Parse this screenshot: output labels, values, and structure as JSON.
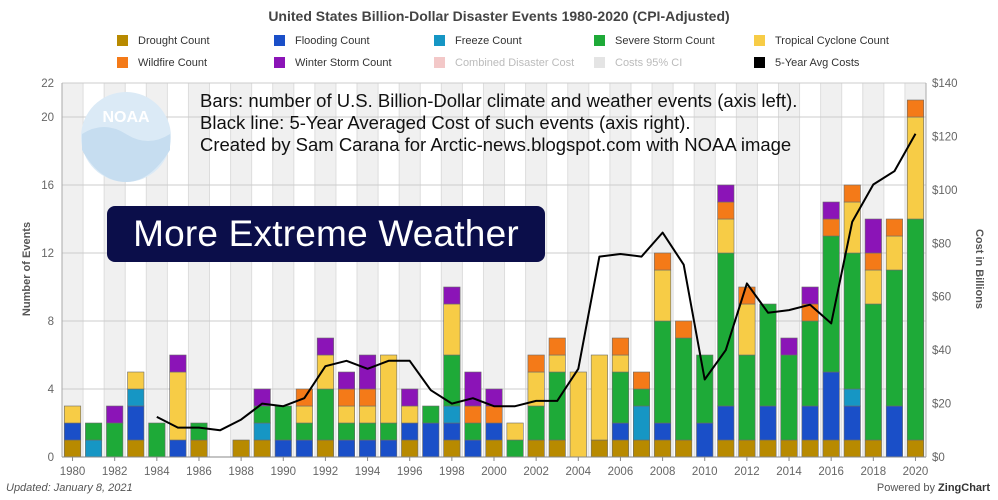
{
  "header": {
    "title": "United States Billion-Dollar Disaster Events 1980-2020 (CPI-Adjusted)"
  },
  "legend": [
    {
      "label": "Drought Count",
      "color": "#b88a00",
      "faded": false
    },
    {
      "label": "Flooding Count",
      "color": "#1a4fc8",
      "faded": false
    },
    {
      "label": "Freeze Count",
      "color": "#1696c4",
      "faded": false
    },
    {
      "label": "Severe Storm Count",
      "color": "#1eaa38",
      "faded": false
    },
    {
      "label": "Tropical Cyclone Count",
      "color": "#f7cc46",
      "faded": false
    },
    {
      "label": "Wildfire Count",
      "color": "#f47a18",
      "faded": false
    },
    {
      "label": "Winter Storm Count",
      "color": "#8b14b7",
      "faded": false
    },
    {
      "label": "Combined Disaster Cost",
      "color": "#f3c8c8",
      "faded": true
    },
    {
      "label": "Costs 95% CI",
      "color": "#e4e4e4",
      "faded": true
    },
    {
      "label": "5-Year Avg Costs",
      "color": "#000000",
      "faded": false
    }
  ],
  "overlay": {
    "line1": "Bars: number of U.S. Billion-Dollar climate and weather events (axis left).",
    "line2": "Black line: 5-Year Averaged Cost of such events (axis right).",
    "line3": "Created by Sam Carana for Arctic-news.blogspot.com with NOAA image",
    "headline": "More Extreme Weather"
  },
  "logo": {
    "text": "NOAA"
  },
  "footer": {
    "updated": "Updated: January 8, 2021",
    "powered_prefix": "Powered by ",
    "powered_brand": "ZingChart"
  },
  "chart_data": {
    "type": "bar",
    "stacked": true,
    "xlabel": "",
    "ylabel": "Number of Events",
    "y2label": "Cost in Billions",
    "ylim": [
      0,
      22
    ],
    "y2lim": [
      0,
      140
    ],
    "yticks": [
      "0",
      "4",
      "8",
      "12",
      "16",
      "20",
      "22"
    ],
    "y2ticks": [
      "$0",
      "$20",
      "$40",
      "$60",
      "$80",
      "$100",
      "$120",
      "$140"
    ],
    "xticks": [
      "1980",
      "1982",
      "1984",
      "1986",
      "1988",
      "1990",
      "1992",
      "1994",
      "1996",
      "1998",
      "2000",
      "2002",
      "2004",
      "2006",
      "2008",
      "2010",
      "2012",
      "2014",
      "2016",
      "2018",
      "2020"
    ],
    "grid": true,
    "years": [
      1980,
      1981,
      1982,
      1983,
      1984,
      1985,
      1986,
      1987,
      1988,
      1989,
      1990,
      1991,
      1992,
      1993,
      1994,
      1995,
      1996,
      1997,
      1998,
      1999,
      2000,
      2001,
      2002,
      2003,
      2004,
      2005,
      2006,
      2007,
      2008,
      2009,
      2010,
      2011,
      2012,
      2013,
      2014,
      2015,
      2016,
      2017,
      2018,
      2019,
      2020
    ],
    "series": [
      {
        "name": "Drought Count",
        "color": "#b88a00",
        "values": [
          1,
          0,
          0,
          1,
          0,
          0,
          1,
          0,
          1,
          1,
          0,
          0,
          1,
          0,
          0,
          0,
          1,
          0,
          1,
          0,
          1,
          0,
          1,
          1,
          0,
          1,
          1,
          1,
          1,
          1,
          0,
          1,
          1,
          1,
          1,
          1,
          1,
          1,
          1,
          0,
          1
        ]
      },
      {
        "name": "Flooding Count",
        "color": "#1a4fc8",
        "values": [
          1,
          0,
          0,
          2,
          0,
          1,
          0,
          0,
          0,
          0,
          1,
          1,
          0,
          1,
          1,
          1,
          1,
          2,
          1,
          1,
          1,
          0,
          0,
          0,
          0,
          0,
          1,
          0,
          1,
          0,
          2,
          2,
          0,
          2,
          0,
          2,
          4,
          2,
          0,
          3,
          0
        ]
      },
      {
        "name": "Freeze Count",
        "color": "#1696c4",
        "values": [
          0,
          1,
          0,
          1,
          0,
          0,
          0,
          0,
          0,
          1,
          0,
          0,
          0,
          0,
          0,
          0,
          0,
          0,
          1,
          0,
          0,
          0,
          0,
          0,
          0,
          0,
          0,
          2,
          0,
          0,
          0,
          0,
          0,
          0,
          0,
          0,
          0,
          1,
          0,
          0,
          0
        ]
      },
      {
        "name": "Severe Storm Count",
        "color": "#1eaa38",
        "values": [
          0,
          1,
          2,
          0,
          2,
          0,
          1,
          0,
          0,
          1,
          2,
          1,
          3,
          1,
          1,
          1,
          0,
          1,
          3,
          1,
          0,
          1,
          2,
          4,
          0,
          0,
          3,
          1,
          6,
          6,
          4,
          9,
          5,
          6,
          5,
          5,
          8,
          8,
          8,
          8,
          13
        ]
      },
      {
        "name": "Tropical Cyclone Count",
        "color": "#f7cc46",
        "values": [
          1,
          0,
          0,
          1,
          0,
          4,
          0,
          0,
          0,
          0,
          0,
          1,
          2,
          1,
          1,
          4,
          1,
          0,
          3,
          0,
          0,
          1,
          2,
          1,
          5,
          5,
          1,
          0,
          3,
          0,
          0,
          2,
          3,
          0,
          0,
          0,
          0,
          3,
          2,
          2,
          6
        ]
      },
      {
        "name": "Wildfire Count",
        "color": "#f47a18",
        "values": [
          0,
          0,
          0,
          0,
          0,
          0,
          0,
          0,
          0,
          0,
          0,
          1,
          0,
          1,
          1,
          0,
          0,
          0,
          0,
          1,
          1,
          0,
          1,
          1,
          0,
          0,
          1,
          1,
          1,
          1,
          0,
          1,
          1,
          0,
          0,
          1,
          1,
          1,
          1,
          1,
          1
        ]
      },
      {
        "name": "Winter Storm Count",
        "color": "#8b14b7",
        "values": [
          0,
          0,
          1,
          0,
          0,
          1,
          0,
          0,
          0,
          1,
          0,
          0,
          1,
          1,
          2,
          0,
          1,
          0,
          1,
          2,
          1,
          0,
          0,
          0,
          0,
          0,
          0,
          0,
          0,
          0,
          0,
          1,
          0,
          0,
          1,
          1,
          1,
          0,
          2,
          0,
          0
        ]
      }
    ],
    "avg_cost_line": {
      "name": "5-Year Avg Costs",
      "color": "#000000",
      "x": [
        1984,
        1985,
        1986,
        1987,
        1988,
        1989,
        1990,
        1991,
        1992,
        1993,
        1994,
        1995,
        1996,
        1997,
        1998,
        1999,
        2000,
        2001,
        2002,
        2003,
        2004,
        2005,
        2006,
        2007,
        2008,
        2009,
        2010,
        2011,
        2012,
        2013,
        2014,
        2015,
        2016,
        2017,
        2018,
        2019,
        2020
      ],
      "y": [
        15,
        11,
        11,
        10,
        14,
        20,
        19,
        22,
        34,
        36,
        33,
        36,
        36,
        25,
        20,
        22,
        19,
        19,
        21,
        21,
        33,
        75,
        76,
        75,
        84,
        72,
        29,
        40,
        65,
        54,
        55,
        57,
        50,
        88,
        102,
        107,
        121
      ]
    }
  }
}
